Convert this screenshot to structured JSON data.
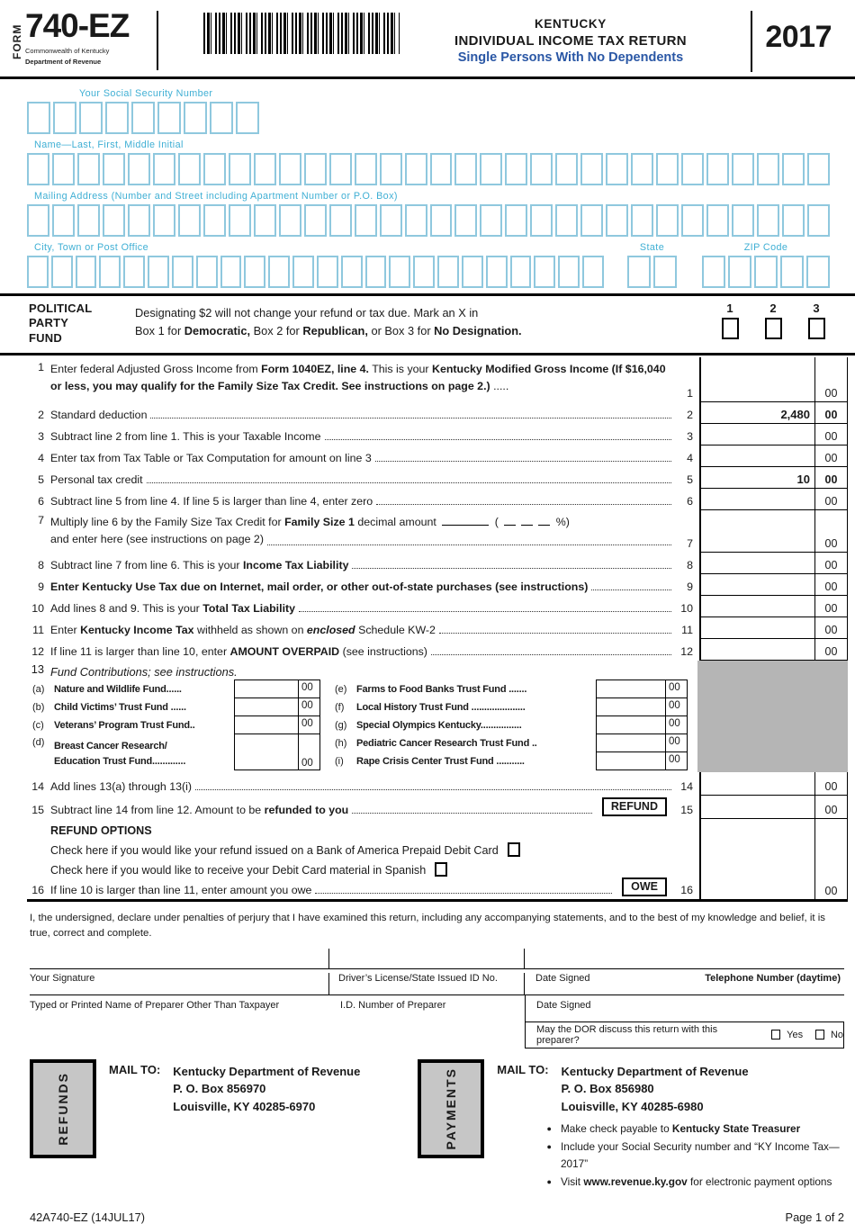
{
  "header": {
    "form_label": "FORM",
    "form_number": "740-EZ",
    "commonwealth": "Commonwealth of Kentucky",
    "department": "Department of Revenue",
    "state_name": "KENTUCKY",
    "title": "INDIVIDUAL INCOME TAX RETURN",
    "subtitle": "Single Persons With No Dependents",
    "year": "2017"
  },
  "colors": {
    "field_box_blue": "#8FC8DE",
    "label_blue": "#3FAFD4",
    "subtitle_navy": "#2A57A5",
    "blocked_gray": "#B5B5B5"
  },
  "fields": {
    "ssn_label": "Your Social Security Number",
    "ssn_boxes": 9,
    "name_label": "Name—Last, First, Middle Initial",
    "name_boxes": 32,
    "address_label": "Mailing Address (Number and Street including Apartment Number or P.O. Box)",
    "address_boxes": 32,
    "city_label": "City, Town or Post Office",
    "city_boxes": 24,
    "state_label": "State",
    "state_boxes": 2,
    "zip_label": "ZIP Code",
    "zip_boxes": 5
  },
  "political": {
    "heading_1": "POLITICAL",
    "heading_2": "PARTY",
    "heading_3": "FUND",
    "line1": [
      {
        "t": "Designating $2 will not change your refund or tax due. Mark an X in"
      }
    ],
    "line2": [
      {
        "t": "Box 1 for "
      },
      {
        "t": "Democratic,",
        "b": 1
      },
      {
        "t": " Box 2 for "
      },
      {
        "t": "Republican,",
        "b": 1
      },
      {
        "t": " or Box 3 for "
      },
      {
        "t": "No Designation.",
        "b": 1
      }
    ],
    "numbers": [
      "1",
      "2",
      "3"
    ]
  },
  "lines": {
    "l1": {
      "num": "1",
      "ref": "1",
      "cents": "00",
      "value": "",
      "segments": [
        {
          "t": "Enter federal Adjusted Gross Income from "
        },
        {
          "t": "Form 1040EZ, line 4.",
          "b": 1
        },
        {
          "t": " This is your "
        },
        {
          "t": "Kentucky Modified Gross Income (If $16,040 or less, you may qualify for the Family Size Tax Credit. See instructions on page 2.)",
          "b": 1
        },
        {
          "t": " ....."
        }
      ]
    },
    "l2": {
      "num": "2",
      "ref": "2",
      "cents": "00",
      "value": "2,480",
      "segments": [
        {
          "t": "Standard deduction "
        }
      ]
    },
    "l3": {
      "num": "3",
      "ref": "3",
      "cents": "00",
      "value": "",
      "segments": [
        {
          "t": "Subtract line 2 from line 1. This is your Taxable Income "
        }
      ]
    },
    "l4": {
      "num": "4",
      "ref": "4",
      "cents": "00",
      "value": "",
      "segments": [
        {
          "t": "Enter tax from Tax Table or Tax Computation for amount on line 3"
        }
      ]
    },
    "l5": {
      "num": "5",
      "ref": "5",
      "cents": "00",
      "value": "10",
      "segments": [
        {
          "t": "Personal tax credit "
        }
      ]
    },
    "l6": {
      "num": "6",
      "ref": "6",
      "cents": "00",
      "value": "",
      "segments": [
        {
          "t": "Subtract line 5 from line 4. If line 5 is larger than line 4, enter zero "
        }
      ]
    },
    "l7": {
      "num": "7",
      "ref": "7",
      "cents": "00",
      "value": "",
      "segments_a": [
        {
          "t": "Multiply line 6 by the Family Size Tax Credit for "
        },
        {
          "t": "Family Size 1",
          "b": 1
        },
        {
          "t": " decimal amount "
        },
        {
          "blank": 52
        },
        {
          "t": " ( "
        },
        {
          "blank": 13
        },
        {
          "blank": 13
        },
        {
          "blank": 13
        },
        {
          "t": " %)"
        }
      ],
      "segments_b": [
        {
          "t": "and enter here (see instructions on page 2) "
        }
      ]
    },
    "l8": {
      "num": "8",
      "ref": "8",
      "cents": "00",
      "value": "",
      "segments": [
        {
          "t": "Subtract line 7 from line 6. This is your "
        },
        {
          "t": "Income Tax Liability",
          "b": 1
        },
        {
          "t": " "
        }
      ]
    },
    "l9": {
      "num": "9",
      "ref": "9",
      "cents": "00",
      "value": "",
      "segments": [
        {
          "t": "Enter Kentucky Use Tax due on Internet, mail order, or other out-of-state purchases (see instructions) ",
          "b": 1
        }
      ]
    },
    "l10": {
      "num": "10",
      "ref": "10",
      "cents": "00",
      "value": "",
      "segments": [
        {
          "t": "Add lines 8 and 9. This is your "
        },
        {
          "t": "Total Tax Liability",
          "b": 1
        },
        {
          "t": " "
        }
      ]
    },
    "l11": {
      "num": "11",
      "ref": "11",
      "cents": "00",
      "value": "",
      "segments": [
        {
          "t": "Enter "
        },
        {
          "t": "Kentucky Income Tax",
          "b": 1
        },
        {
          "t": " withheld as shown on "
        },
        {
          "t": "enclosed",
          "b": 1,
          "i": 1
        },
        {
          "t": " Schedule KW-2 "
        }
      ]
    },
    "l12": {
      "num": "12",
      "ref": "12",
      "cents": "00",
      "value": "",
      "segments": [
        {
          "t": "If line 11 is larger than line 10, enter "
        },
        {
          "t": "AMOUNT OVERPAID",
          "b": 1
        },
        {
          "t": " (see instructions) "
        }
      ]
    },
    "l13": {
      "num": "13",
      "segments": [
        {
          "t": "Fund Contributions; see instructions.",
          "i": 1
        }
      ]
    },
    "l14": {
      "num": "14",
      "ref": "14",
      "cents": "00",
      "value": "",
      "segments": [
        {
          "t": "Add lines 13(a) through 13(i)"
        }
      ]
    },
    "l15": {
      "num": "15",
      "ref": "15",
      "cents": "00",
      "value": "",
      "segments": [
        {
          "t": "Subtract line 14 from line 12. Amount to be "
        },
        {
          "t": "refunded to you",
          "b": 1
        },
        {
          "t": " "
        }
      ]
    },
    "l16": {
      "num": "16",
      "ref": "16",
      "cents": "00",
      "value": "",
      "segments": [
        {
          "t": "If line 10 is larger than line 11, enter amount you owe"
        }
      ]
    }
  },
  "refund_tag": "REFUND",
  "owe_tag": "OWE",
  "refund_options": {
    "heading": "REFUND OPTIONS",
    "opt1": "Check here if you would like your refund issued on a Bank of America Prepaid Debit Card",
    "opt2": "Check here if you would like to receive your Debit Card material in Spanish"
  },
  "funds_left": [
    {
      "letter": "(a)",
      "label": "Nature and Wildlife Fund......",
      "cents": "00"
    },
    {
      "letter": "(b)",
      "label": "Child Victims’ Trust Fund ......",
      "cents": "00"
    },
    {
      "letter": "(c)",
      "label": "Veterans’ Program Trust Fund..",
      "cents": "00"
    },
    {
      "letter": "(d)",
      "label_line1": "Breast Cancer Research/",
      "label_line2": "Education Trust Fund.............",
      "cents": "00"
    }
  ],
  "funds_right": [
    {
      "letter": "(e)",
      "label": "Farms to Food Banks Trust Fund .......",
      "cents": "00"
    },
    {
      "letter": "(f)",
      "label": "Local History Trust Fund .....................",
      "cents": "00"
    },
    {
      "letter": "(g)",
      "label": "Special Olympics Kentucky................",
      "cents": "00"
    },
    {
      "letter": "(h)",
      "label": "Pediatric Cancer Research Trust Fund ..",
      "cents": "00"
    },
    {
      "letter": "(i)",
      "label": "Rape Crisis Center Trust Fund ...........",
      "cents": "00"
    }
  ],
  "signature": {
    "perjury": "I, the undersigned, declare under penalties of perjury that I have examined this return, including any accompanying statements, and to the best of my knowledge and belief, it is true, correct and complete.",
    "your_signature": "Your Signature",
    "drivers_license": "Driver’s License/State Issued ID No.",
    "date_signed": "Date Signed",
    "telephone": "Telephone Number (daytime)",
    "preparer_name": "Typed or Printed Name of Preparer Other Than Taxpayer",
    "preparer_id": "I.D. Number of Preparer",
    "date_signed2": "Date Signed",
    "dor_question": "May the DOR discuss this return with this preparer?",
    "yes": "Yes",
    "no": "No"
  },
  "mail": {
    "mail_to": "MAIL TO:",
    "refunds_tag": "REFUNDS",
    "payments_tag": "PAYMENTS",
    "refunds_address": [
      "Kentucky Department of Revenue",
      "P. O. Box 856970",
      "Louisville, KY 40285-6970"
    ],
    "payments_address": [
      "Kentucky Department of Revenue",
      "P. O. Box 856980",
      "Louisville, KY 40285-6980"
    ],
    "bullets": [
      [
        {
          "t": "Make check payable to "
        },
        {
          "t": "Kentucky State Treasurer",
          "b": 1
        }
      ],
      [
        {
          "t": "Include your Social Security number and “KY Income Tax—2017”"
        }
      ],
      [
        {
          "t": "Visit "
        },
        {
          "t": "www.revenue.ky.gov",
          "b": 1
        },
        {
          "t": " for electronic payment options"
        }
      ]
    ]
  },
  "footer": {
    "form_code": "42A740-EZ (14JUL17)",
    "page": "Page 1 of 2"
  }
}
